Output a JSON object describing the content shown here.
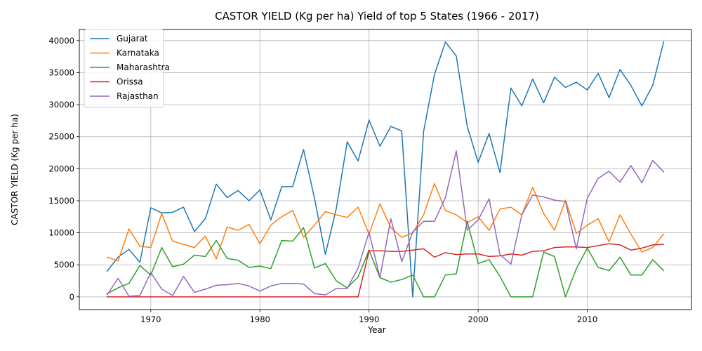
{
  "chart_data": {
    "type": "line",
    "title": "CASTOR YIELD (Kg per ha) Yield of top 5 States (1966 - 2017)",
    "xlabel": "Year",
    "ylabel": "CASTOR YIELD (Kg per ha)",
    "xlim": [
      1963.45,
      2019.55
    ],
    "ylim": [
      -1987,
      41735
    ],
    "xticks": [
      1970,
      1980,
      1990,
      2000,
      2010
    ],
    "xtick_labels": [
      "1970",
      "1980",
      "1990",
      "2000",
      "2010"
    ],
    "yticks": [
      0,
      5000,
      10000,
      15000,
      20000,
      25000,
      30000,
      35000,
      40000
    ],
    "ytick_labels": [
      "0",
      "5000",
      "10000",
      "15000",
      "20000",
      "25000",
      "30000",
      "35000",
      "40000"
    ],
    "grid": true,
    "legend_position": "upper-left",
    "x": [
      1966,
      1967,
      1968,
      1969,
      1970,
      1971,
      1972,
      1973,
      1974,
      1975,
      1976,
      1977,
      1978,
      1979,
      1980,
      1981,
      1982,
      1983,
      1984,
      1985,
      1986,
      1987,
      1988,
      1989,
      1990,
      1991,
      1992,
      1993,
      1994,
      1995,
      1996,
      1997,
      1998,
      1999,
      2000,
      2001,
      2002,
      2003,
      2004,
      2005,
      2006,
      2007,
      2008,
      2009,
      2010,
      2011,
      2012,
      2013,
      2014,
      2015,
      2016,
      2017
    ],
    "series": [
      {
        "name": "Gujarat",
        "color": "#1f77b4",
        "values": [
          4000,
          6200,
          7400,
          5400,
          13900,
          13100,
          13200,
          14000,
          10200,
          12200,
          17600,
          15500,
          16600,
          15000,
          16700,
          12000,
          17200,
          17200,
          23000,
          15400,
          6600,
          13800,
          24200,
          21200,
          27600,
          23500,
          26600,
          25900,
          0,
          25800,
          34700,
          39800,
          37600,
          26600,
          21000,
          25500,
          19400,
          32600,
          29800,
          34000,
          30300,
          34300,
          32700,
          33500,
          32300,
          34900,
          31100,
          35500,
          33000,
          29800,
          33000,
          39800
        ]
      },
      {
        "name": "Karnataka",
        "color": "#ff7f0e",
        "values": [
          6200,
          5600,
          10600,
          7900,
          7700,
          13000,
          8700,
          8200,
          7700,
          9500,
          5900,
          10900,
          10400,
          11300,
          8300,
          11200,
          12500,
          13500,
          9300,
          11200,
          13300,
          12800,
          12400,
          14000,
          9800,
          14500,
          10800,
          9300,
          10000,
          12800,
          17700,
          13500,
          12800,
          11600,
          12500,
          10400,
          13700,
          14000,
          12800,
          17100,
          13000,
          10400,
          15100,
          9900,
          11200,
          12200,
          8600,
          12800,
          9800,
          7000,
          7700,
          9800
        ]
      },
      {
        "name": "Maharashtra",
        "color": "#2ca02c",
        "values": [
          500,
          1400,
          2100,
          4900,
          3400,
          7700,
          4700,
          5100,
          6500,
          6300,
          8800,
          6000,
          5700,
          4600,
          4800,
          4400,
          8800,
          8700,
          10800,
          4500,
          5200,
          2500,
          1400,
          3100,
          7300,
          3000,
          2300,
          2700,
          3400,
          0,
          0,
          3400,
          3600,
          11800,
          5200,
          5800,
          3200,
          0,
          0,
          0,
          7000,
          6300,
          0,
          4400,
          7600,
          4600,
          4100,
          6200,
          3400,
          3400,
          5800,
          4100
        ]
      },
      {
        "name": "Orissa",
        "color": "#d62728",
        "values": [
          0,
          0,
          0,
          0,
          0,
          0,
          0,
          0,
          0,
          0,
          0,
          0,
          0,
          0,
          0,
          0,
          0,
          0,
          0,
          0,
          0,
          0,
          0,
          0,
          7200,
          7200,
          7100,
          7100,
          7300,
          7500,
          6200,
          6900,
          6600,
          6700,
          6700,
          6300,
          6400,
          6700,
          6500,
          7100,
          7200,
          7700,
          7800,
          7800,
          7700,
          8000,
          8300,
          8100,
          7300,
          7600,
          8100,
          8200
        ]
      },
      {
        "name": "Rajasthan",
        "color": "#9467bd",
        "values": [
          300,
          2900,
          100,
          200,
          3800,
          1200,
          200,
          3200,
          700,
          1200,
          1800,
          1900,
          2100,
          1700,
          900,
          1700,
          2100,
          2100,
          2000,
          500,
          300,
          1300,
          1300,
          4500,
          10100,
          3000,
          12200,
          5500,
          10100,
          11800,
          11800,
          15500,
          22800,
          10400,
          12000,
          15300,
          6600,
          5100,
          12800,
          15900,
          15600,
          15100,
          14900,
          7500,
          15400,
          18500,
          19600,
          17900,
          20500,
          17800,
          21300,
          19500
        ]
      }
    ]
  }
}
